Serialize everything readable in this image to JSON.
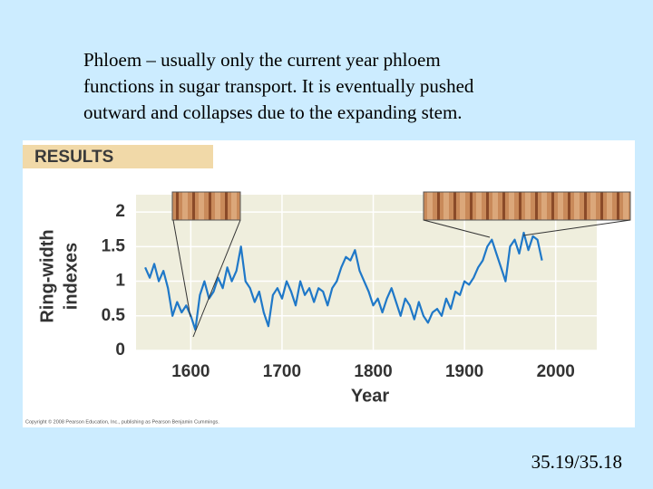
{
  "slide": {
    "text_lines": [
      "Phloem – usually only the current year phloem",
      "functions in sugar transport.  It is eventually pushed",
      "outward and collapses due to the expanding stem."
    ],
    "footer": "35.19/35.18"
  },
  "chart_data": {
    "type": "line",
    "header": "RESULTS",
    "xlabel": "Year",
    "ylabel": [
      "Ring-width",
      "indexes"
    ],
    "copyright": "Copyright © 2008 Pearson Education, Inc., publishing as Pearson Benjamin Cummings.",
    "color": "#1f78c8",
    "grid": true,
    "xlim": [
      1540,
      2045
    ],
    "xticks": [
      1600,
      1700,
      1800,
      1900,
      2000
    ],
    "ylim": [
      0,
      2.25
    ],
    "yticks": [
      0,
      0.5,
      1,
      1.5,
      2
    ],
    "x": [
      1550,
      1555,
      1560,
      1565,
      1570,
      1575,
      1580,
      1585,
      1590,
      1595,
      1600,
      1605,
      1610,
      1615,
      1620,
      1625,
      1630,
      1635,
      1640,
      1645,
      1650,
      1655,
      1660,
      1665,
      1670,
      1675,
      1680,
      1685,
      1690,
      1695,
      1700,
      1705,
      1710,
      1715,
      1720,
      1725,
      1730,
      1735,
      1740,
      1745,
      1750,
      1755,
      1760,
      1765,
      1770,
      1775,
      1780,
      1785,
      1790,
      1795,
      1800,
      1805,
      1810,
      1815,
      1820,
      1825,
      1830,
      1835,
      1840,
      1845,
      1850,
      1855,
      1860,
      1865,
      1870,
      1875,
      1880,
      1885,
      1890,
      1895,
      1900,
      1905,
      1910,
      1915,
      1920,
      1925,
      1930,
      1935,
      1940,
      1945,
      1950,
      1955,
      1960,
      1965,
      1970,
      1975,
      1980,
      1985
    ],
    "values": [
      1.2,
      1.05,
      1.25,
      1.0,
      1.15,
      0.9,
      0.5,
      0.7,
      0.55,
      0.65,
      0.5,
      0.3,
      0.8,
      1.0,
      0.75,
      0.85,
      1.05,
      0.9,
      1.2,
      1.0,
      1.15,
      1.5,
      1.0,
      0.9,
      0.7,
      0.85,
      0.55,
      0.35,
      0.8,
      0.9,
      0.75,
      1.0,
      0.85,
      0.65,
      1.0,
      0.8,
      0.9,
      0.7,
      0.9,
      0.85,
      0.65,
      0.9,
      1.0,
      1.2,
      1.35,
      1.3,
      1.45,
      1.15,
      1.0,
      0.85,
      0.65,
      0.75,
      0.55,
      0.75,
      0.9,
      0.7,
      0.5,
      0.75,
      0.65,
      0.45,
      0.7,
      0.5,
      0.4,
      0.55,
      0.6,
      0.5,
      0.75,
      0.6,
      0.85,
      0.8,
      1.0,
      0.95,
      1.05,
      1.2,
      1.3,
      1.5,
      1.6,
      1.4,
      1.2,
      1.0,
      1.5,
      1.6,
      1.4,
      1.7,
      1.45,
      1.65,
      1.6,
      1.3
    ]
  }
}
